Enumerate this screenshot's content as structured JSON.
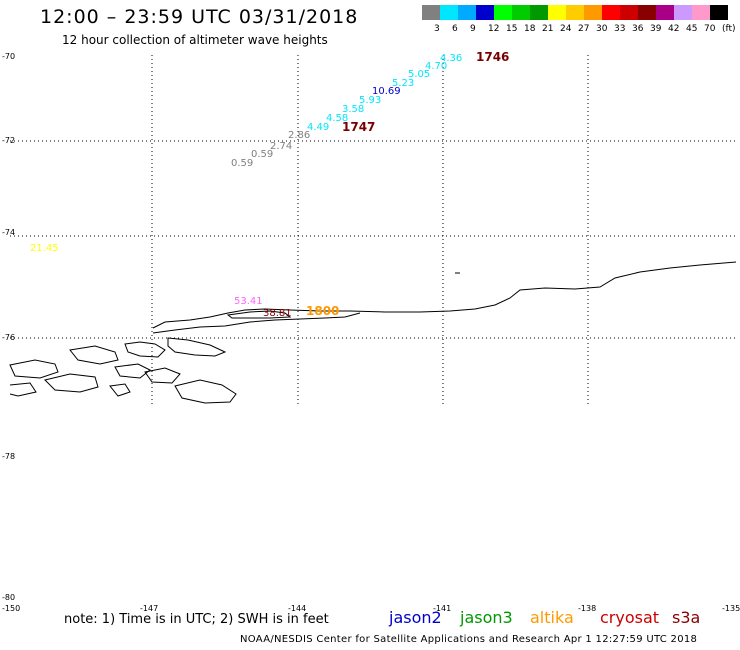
{
  "header": {
    "title": "12:00 – 23:59 UTC 03/31/2018",
    "subtitle": "12 hour collection of altimeter wave heights"
  },
  "legend": {
    "colors": [
      "#808080",
      "#00e6ff",
      "#00aaff",
      "#0000cc",
      "#00ff00",
      "#00cc00",
      "#009900",
      "#ffff00",
      "#ffcc00",
      "#ff9900",
      "#ff0000",
      "#cc0000",
      "#880000",
      "#aa0088",
      "#cc99ff",
      "#ff99cc",
      "#000000"
    ],
    "labels": [
      "3",
      "6",
      "9",
      "12",
      "15",
      "18",
      "21",
      "24",
      "27",
      "30",
      "33",
      "36",
      "39",
      "42",
      "45",
      "70",
      "(ft)"
    ]
  },
  "axes": {
    "lat_labels": [
      "-70",
      "-72",
      "-74",
      "-76",
      "-78",
      "-80"
    ],
    "lon_labels": [
      "-150",
      "-147",
      "-144",
      "-141",
      "-138",
      "-135"
    ]
  },
  "wave_heights": [
    {
      "value": "0.59",
      "color": "#808080"
    },
    {
      "value": "0.59",
      "color": "#808080"
    },
    {
      "value": "2.74",
      "color": "#808080"
    },
    {
      "value": "2.86",
      "color": "#808080"
    },
    {
      "value": "4.49",
      "color": "#00e6ff"
    },
    {
      "value": "4.58",
      "color": "#00e6ff"
    },
    {
      "value": "3.58",
      "color": "#00e6ff"
    },
    {
      "value": "5.93",
      "color": "#00e6ff"
    },
    {
      "value": "10.69",
      "color": "#0000cc"
    },
    {
      "value": "5.23",
      "color": "#00e6ff"
    },
    {
      "value": "5.05",
      "color": "#00e6ff"
    },
    {
      "value": "4.70",
      "color": "#00e6ff"
    },
    {
      "value": "4.36",
      "color": "#00e6ff"
    },
    {
      "value": "21.45",
      "color": "#ffff00"
    },
    {
      "value": "53.41",
      "color": "#ff66ff"
    },
    {
      "value": "38.81",
      "color": "#880000"
    }
  ],
  "time_labels": [
    {
      "value": "1746",
      "color": "#7a0000"
    },
    {
      "value": "1747",
      "color": "#7a0000"
    },
    {
      "value": "1800",
      "color": "#ff9900"
    }
  ],
  "footer": {
    "note": "note: 1) Time is in UTC; 2) SWH is in feet",
    "satellites": [
      {
        "name": "jason2",
        "color": "#0000cc"
      },
      {
        "name": "jason3",
        "color": "#009900"
      },
      {
        "name": "altika",
        "color": "#ff9900"
      },
      {
        "name": "cryosat",
        "color": "#cc0000"
      },
      {
        "name": "s3a",
        "color": "#880000"
      }
    ],
    "credit": "NOAA/NESDIS Center for Satellite Applications and Research    Apr  1 12:27:59 UTC 2018"
  }
}
